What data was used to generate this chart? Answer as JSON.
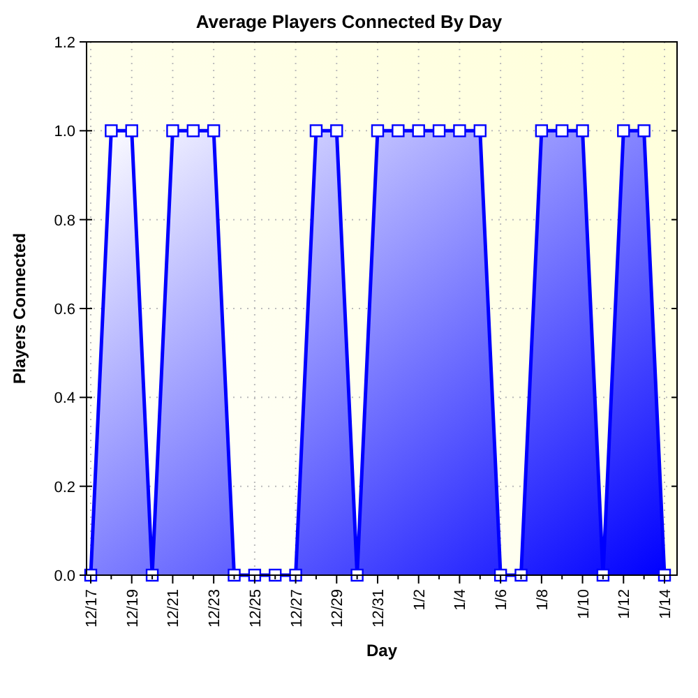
{
  "chart_data": {
    "type": "area",
    "title": "Average Players Connected By Day",
    "xlabel": "Day",
    "ylabel": "Players Connected",
    "categories": [
      "12/17",
      null,
      "12/19",
      null,
      "12/21",
      null,
      "12/23",
      null,
      "12/25",
      null,
      "12/27",
      null,
      "12/29",
      null,
      "12/31",
      null,
      "1/2",
      null,
      "1/4",
      null,
      "1/6",
      null,
      "1/8",
      null,
      "1/10",
      null,
      "1/12",
      null,
      "1/14"
    ],
    "series": [
      {
        "color": "#0000ff",
        "values": [
          0,
          1,
          1,
          0,
          1,
          1,
          1,
          0,
          0,
          0,
          0,
          1,
          1,
          0,
          1,
          1,
          1,
          1,
          1,
          1,
          0,
          0,
          1,
          1,
          1,
          0,
          1,
          1,
          0
        ]
      }
    ],
    "ylim": [
      0,
      1.2
    ],
    "yticks": [
      {
        "value": 0,
        "label": "0.0"
      },
      {
        "value": 0.2,
        "label": "0.2"
      },
      {
        "value": 0.4,
        "label": "0.4"
      },
      {
        "value": 0.6,
        "label": "0.6"
      },
      {
        "value": 0.8,
        "label": "0.8"
      },
      {
        "value": 1,
        "label": "1.0"
      },
      {
        "value": 1.2,
        "label": "1.2"
      }
    ],
    "grid": true,
    "marker": "square"
  }
}
